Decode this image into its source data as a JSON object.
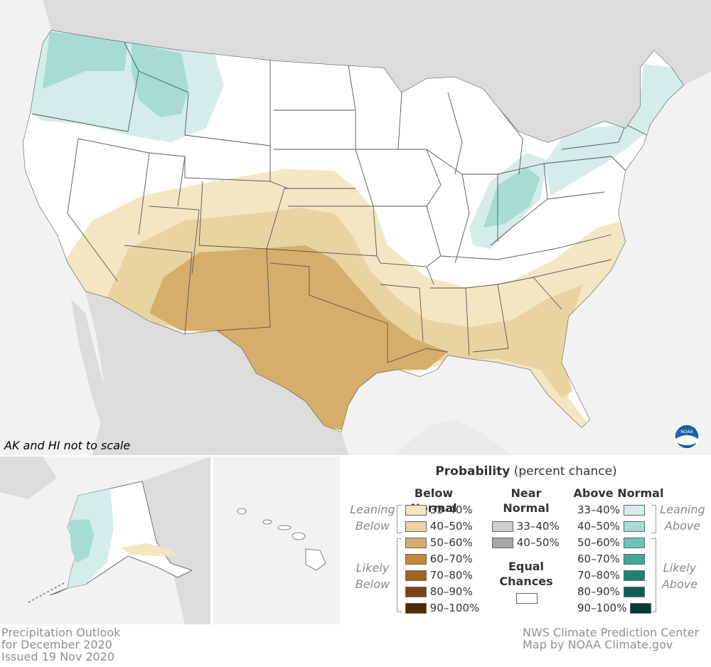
{
  "map": {
    "note": "AK and HI not to scale",
    "colors": {
      "land": "#ffffff",
      "ocean": "#f2f2f2",
      "neighbor_land": "#dcdcdc",
      "state_border": "#555555",
      "below_33_40": "#f4e6c3",
      "below_40_50": "#e9d3a1",
      "below_50_60": "#d6ae6b",
      "above_33_40": "#d4ede8",
      "above_40_50": "#a6dcd1"
    },
    "logo_text": "NOAA"
  },
  "legend": {
    "title_bold": "Probability",
    "title_rest": " (percent chance)",
    "below_header": "Below Normal",
    "near_header": [
      "Near",
      "Normal"
    ],
    "above_header": "Above Normal",
    "leaning_below": [
      "Leaning",
      "Below"
    ],
    "likely_below": [
      "Likely",
      "Below"
    ],
    "leaning_above": [
      "Leaning",
      "Above"
    ],
    "likely_above": [
      "Likely",
      "Above"
    ],
    "equal_chances": [
      "Equal",
      "Chances"
    ],
    "below_items": [
      {
        "label": "33–40%",
        "color": "#f4e6c3"
      },
      {
        "label": "40–50%",
        "color": "#e9d3a1"
      },
      {
        "label": "50–60%",
        "color": "#d6ae6b"
      },
      {
        "label": "60–70%",
        "color": "#c28a3c"
      },
      {
        "label": "70–80%",
        "color": "#a4621e"
      },
      {
        "label": "80–90%",
        "color": "#7b440f"
      },
      {
        "label": "90–100%",
        "color": "#512a06"
      }
    ],
    "near_items": [
      {
        "label": "33–40%",
        "color": "#cfcfcf"
      },
      {
        "label": "40–50%",
        "color": "#a8a8a8"
      }
    ],
    "above_items": [
      {
        "label": "33–40%",
        "color": "#d4ede8"
      },
      {
        "label": "40–50%",
        "color": "#a6dcd1"
      },
      {
        "label": "50–60%",
        "color": "#6ec4b4"
      },
      {
        "label": "60–70%",
        "color": "#3fa79a"
      },
      {
        "label": "70–80%",
        "color": "#1e8377"
      },
      {
        "label": "80–90%",
        "color": "#0e5f55"
      },
      {
        "label": "90–100%",
        "color": "#053d35"
      }
    ],
    "equal_color": "#ffffff"
  },
  "footer": {
    "left": [
      "Precipitation Outlook",
      "for December 2020",
      "Issued 19 Nov 2020"
    ],
    "right": [
      "NWS Climate Prediction Center",
      "Map by NOAA Climate.gov"
    ]
  }
}
